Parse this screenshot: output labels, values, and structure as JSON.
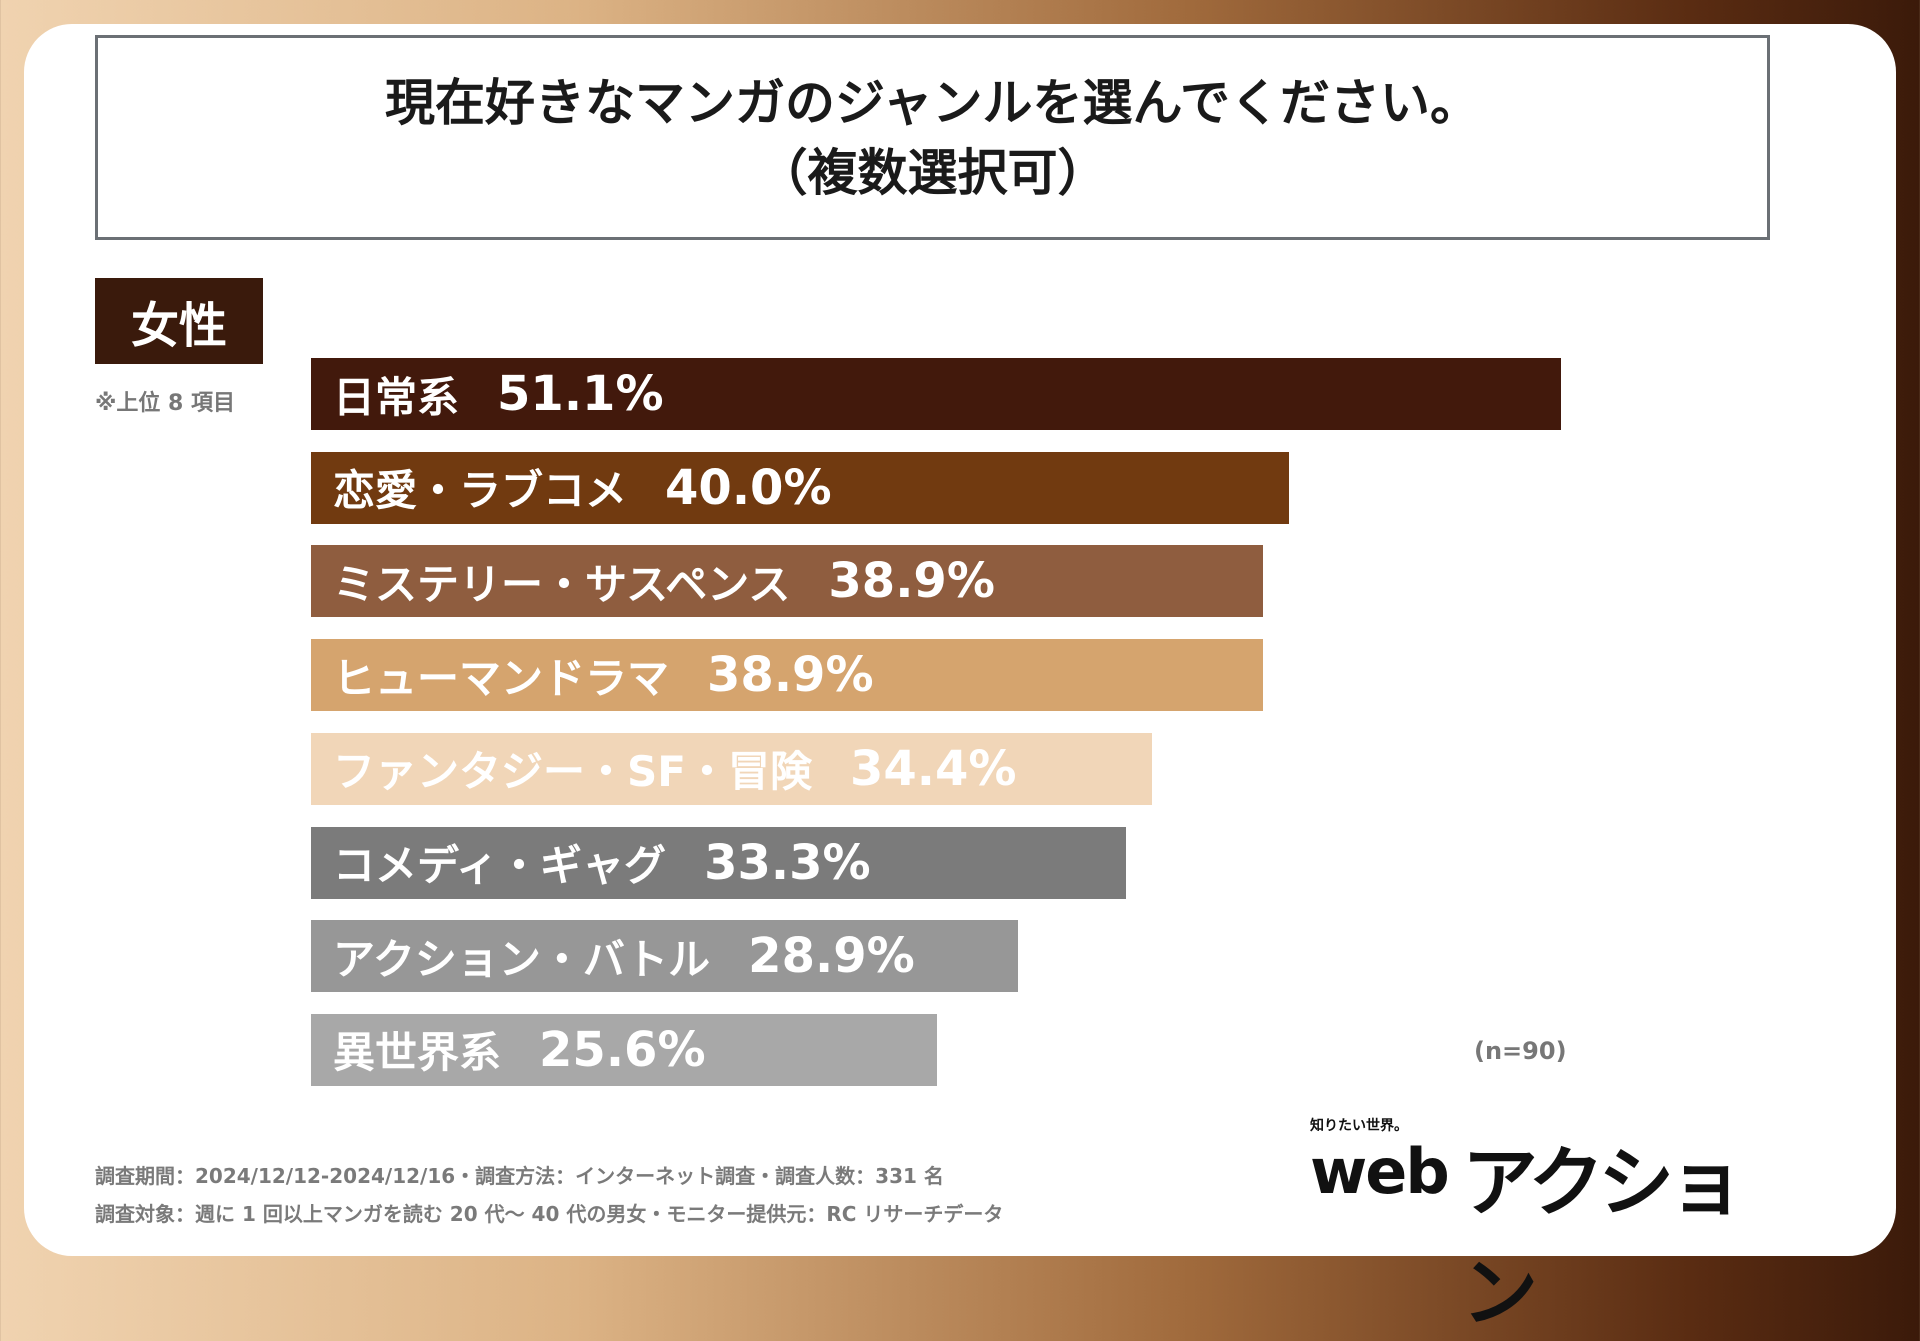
{
  "title_line1": "現在好きなマンガのジャンルを選んでください。",
  "title_line2": "（複数選択可）",
  "tag": "女性",
  "note": "※上位 8 項目",
  "n_label": "(n=90)",
  "footer_line1": "調査期間：2024/12/12-2024/12/16・調査方法：インターネット調査・調査人数：331 名",
  "footer_line2": "調査対象：週に 1 回以上マンガを読む 20 代〜 40 代の男女・モニター提供元：RC リサーチデータ",
  "logo_tagline": "知りたい世界。",
  "logo_web": "web",
  "logo_action": "アクション",
  "chart_data": {
    "type": "bar",
    "orientation": "horizontal",
    "title": "現在好きなマンガのジャンルを選んでください。（複数選択可）",
    "series_name": "女性",
    "unit": "%",
    "categories": [
      "日常系",
      "恋愛・ラブコメ",
      "ミステリー・サスペンス",
      "ヒューマンドラマ",
      "ファンタジー・SF・冒険",
      "コメディ・ギャグ",
      "アクション・バトル",
      "異世界系"
    ],
    "values": [
      51.1,
      40.0,
      38.9,
      38.9,
      34.4,
      33.3,
      28.9,
      25.6
    ],
    "value_labels": [
      "51.1%",
      "40.0%",
      "38.9%",
      "38.9%",
      "34.4%",
      "33.3%",
      "28.9%",
      "25.6%"
    ],
    "colors": [
      "#42190c",
      "#713a10",
      "#8f5d3f",
      "#d5a46e",
      "#f1d6b8",
      "#7b7b7b",
      "#979797",
      "#a8a8a8"
    ],
    "xlim": [
      0,
      51.1
    ]
  }
}
